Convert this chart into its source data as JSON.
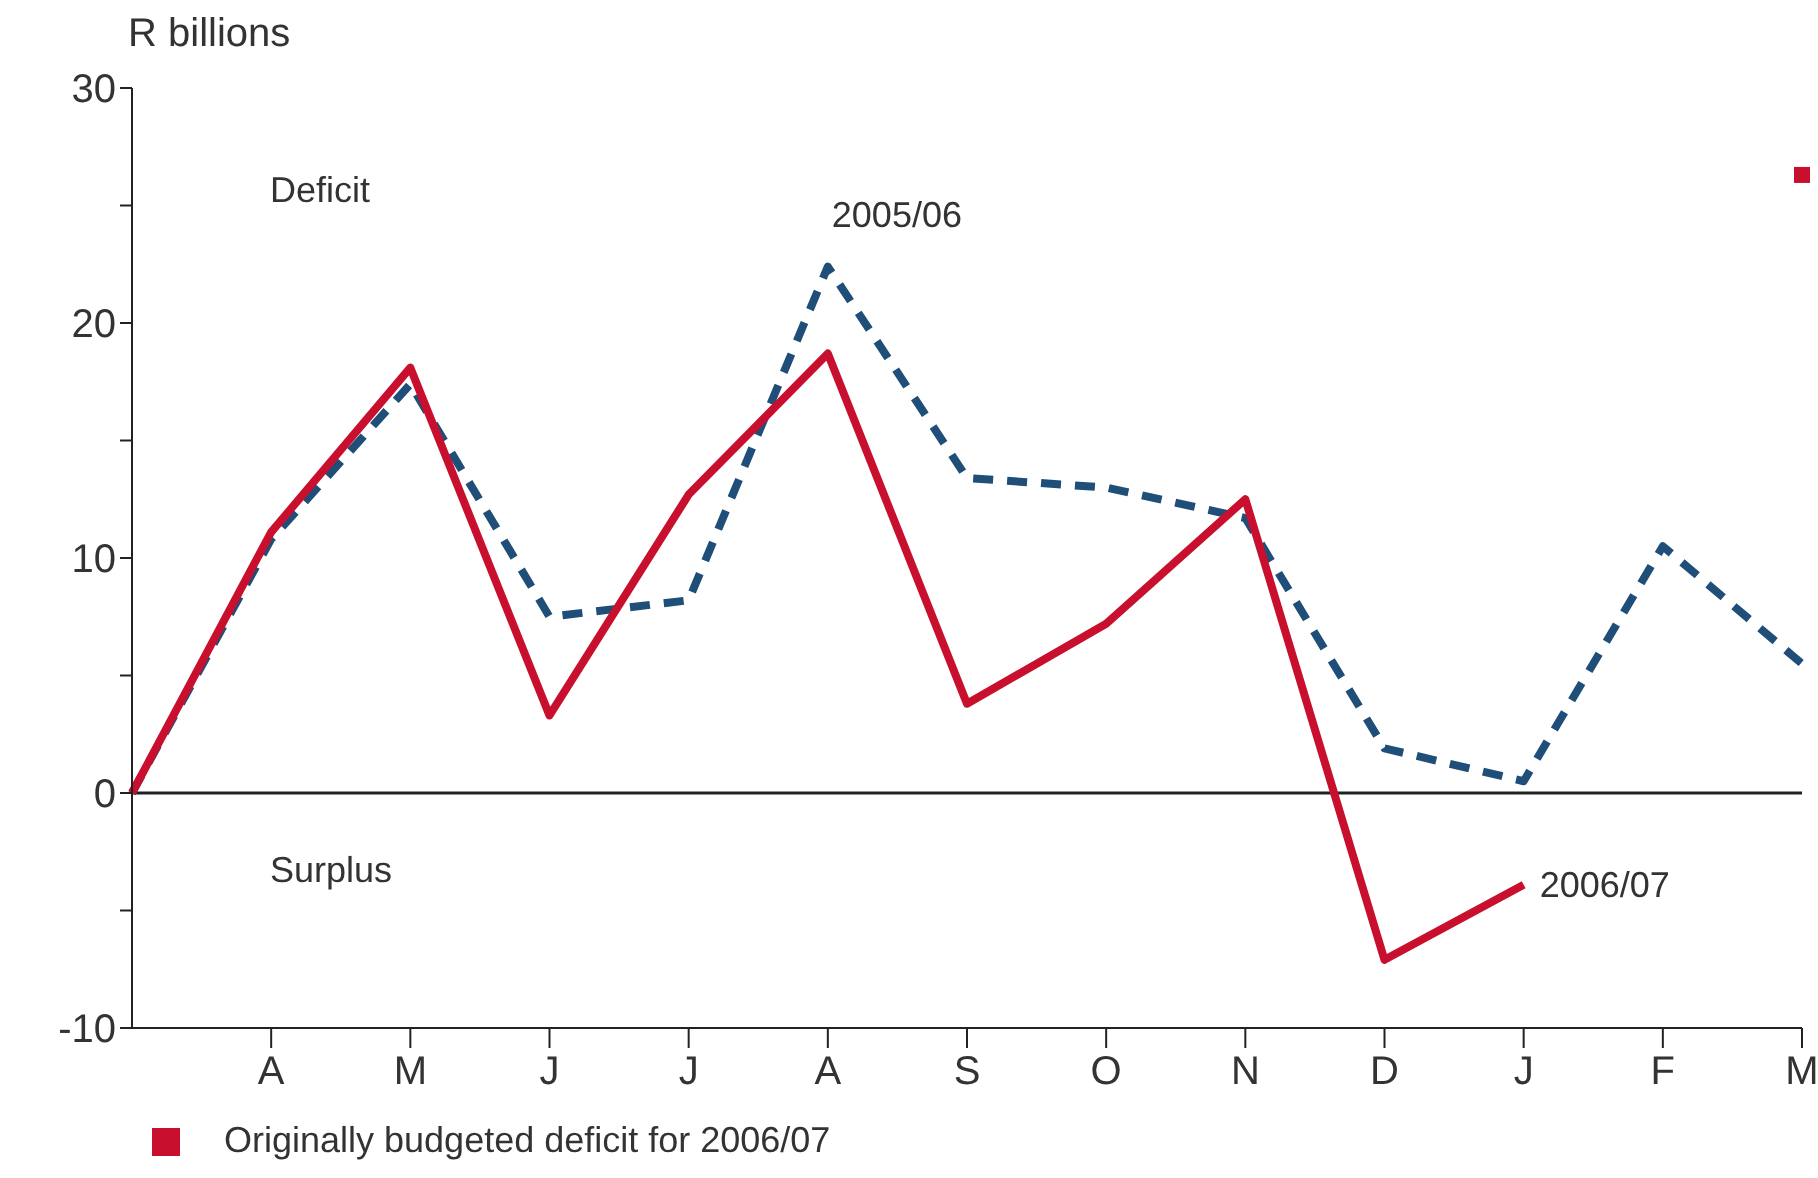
{
  "chart_data": {
    "type": "line",
    "ylabel": "R billions",
    "categories": [
      null,
      "A",
      "M",
      "J",
      "J",
      "A",
      "S",
      "O",
      "N",
      "D",
      "J",
      "F",
      "M"
    ],
    "series": [
      {
        "name": "2005/06",
        "color": "#1f4e79",
        "line_style": "dashed",
        "values": [
          0,
          10.8,
          17.4,
          7.5,
          8.2,
          22.4,
          13.4,
          13.0,
          11.7,
          1.9,
          0.5,
          10.5,
          5.5
        ]
      },
      {
        "name": "2006/07",
        "color": "#c8102e",
        "line_style": "solid",
        "values": [
          0,
          11.1,
          18.1,
          3.3,
          12.7,
          18.7,
          3.8,
          7.2,
          12.5,
          -7.1,
          -3.9,
          null,
          null
        ]
      },
      {
        "name": "Originally budgeted deficit for 2006/07",
        "type": "scatter",
        "marker": "square",
        "color": "#c8102e",
        "values": [
          null,
          null,
          null,
          null,
          null,
          null,
          null,
          null,
          null,
          null,
          null,
          null,
          26.3
        ]
      }
    ],
    "ylim": [
      -10,
      30
    ],
    "yticks": [
      -10,
      {
        "value": -5,
        "label": null
      },
      0,
      {
        "value": 5,
        "label": null
      },
      10,
      {
        "value": 15,
        "label": null
      },
      20,
      {
        "value": 25,
        "label": null
      },
      30
    ],
    "ref_lines": [
      {
        "axis": "y",
        "value": 0,
        "color": "#222222"
      }
    ],
    "annotations": [
      "Deficit",
      "Surplus"
    ],
    "grid": false,
    "legend": "bottom",
    "marker": "none"
  }
}
